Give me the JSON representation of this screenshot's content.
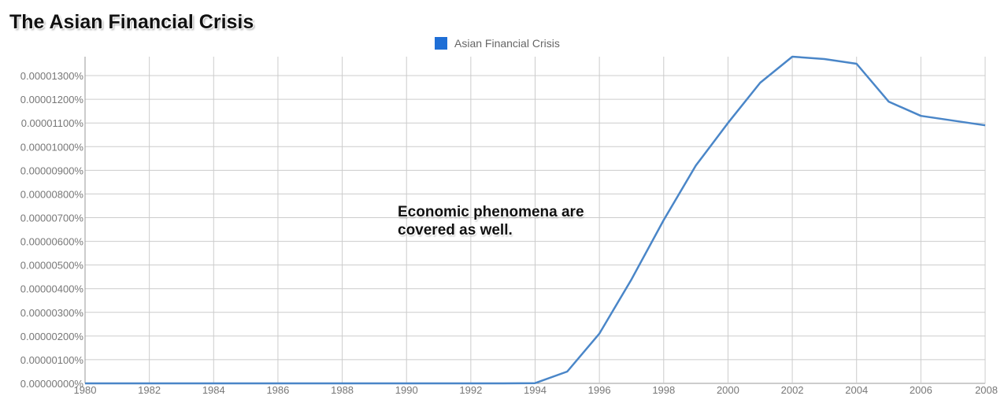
{
  "chart_data": {
    "type": "line",
    "title": "The Asian Financial Crisis",
    "xlabel": "",
    "ylabel": "",
    "xlim": [
      1980,
      2008
    ],
    "ylim": [
      0,
      1.35e-05
    ],
    "grid": true,
    "legend_position": "top",
    "y_ticks": [
      "0.00000000%",
      "0.00000100%",
      "0.00000200%",
      "0.00000300%",
      "0.00000400%",
      "0.00000500%",
      "0.00000600%",
      "0.00000700%",
      "0.00000800%",
      "0.00000900%",
      "0.00001000%",
      "0.00001100%",
      "0.00001200%",
      "0.00001300%"
    ],
    "x_ticks": [
      "1980",
      "1982",
      "1984",
      "1986",
      "1988",
      "1990",
      "1992",
      "1994",
      "1996",
      "1998",
      "2000",
      "2002",
      "2004",
      "2006",
      "2008"
    ],
    "annotation": "Economic phenomena are covered as well.",
    "series": [
      {
        "name": "Asian Financial Crisis",
        "color": "#4a86c8",
        "x": [
          1980,
          1990,
          1993,
          1994,
          1995,
          1996,
          1997,
          1998,
          1999,
          2000,
          2001,
          2002,
          2003,
          2004,
          2005,
          2006,
          2007,
          2008
        ],
        "values": [
          0,
          0,
          0,
          1e-08,
          5e-07,
          2.1e-06,
          4.4e-06,
          6.9e-06,
          9.2e-06,
          1.1e-05,
          1.27e-05,
          1.38e-05,
          1.37e-05,
          1.35e-05,
          1.19e-05,
          1.13e-05,
          1.11e-05,
          1.09e-05
        ]
      }
    ]
  }
}
